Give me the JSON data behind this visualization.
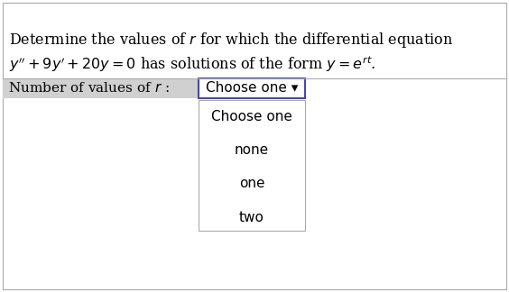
{
  "background_color": "#ffffff",
  "text_line1": "Determine the values of $r$ for which the differential equation",
  "text_line2": "$y'' + 9y' + 20y = 0$ has solutions of the form $y = e^{rt}$.",
  "label_text": "Number of values of $r$ :",
  "dropdown_label": "Choose one ▾",
  "dropdown_items": [
    "Choose one",
    "none",
    "one",
    "two"
  ],
  "label_bg": "#d0d0d0",
  "dropdown_border": "#4444bb",
  "list_border": "#aaaaaa",
  "dropdown_bg": "#ffffff",
  "text_color": "#000000",
  "font_size_main": 11.5,
  "font_size_label": 11,
  "font_size_dropdown": 11
}
